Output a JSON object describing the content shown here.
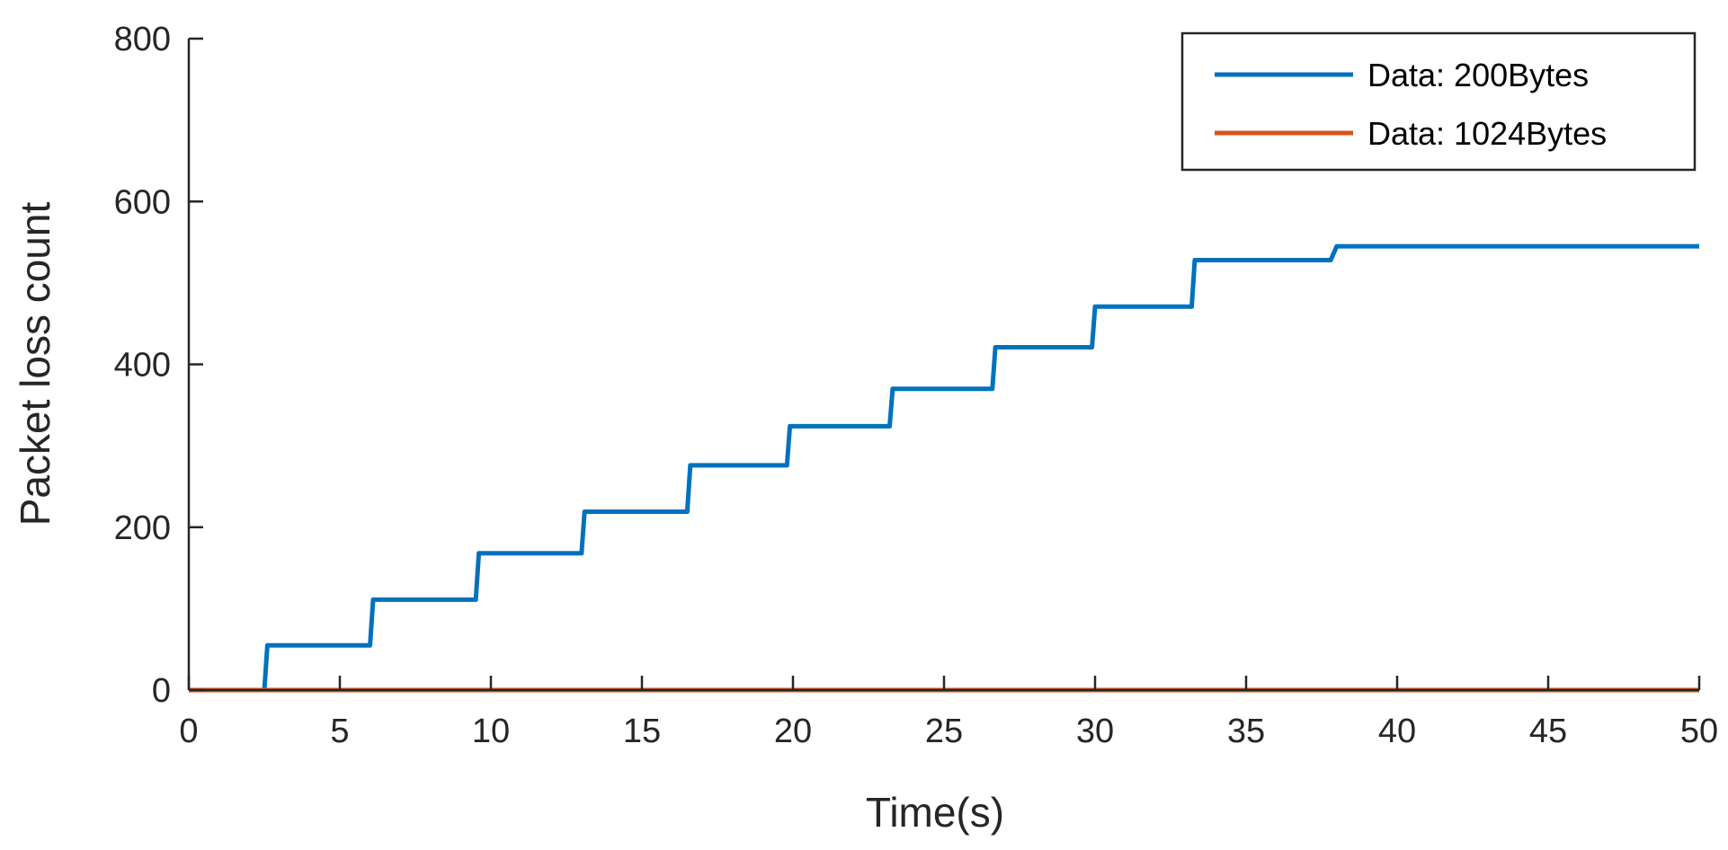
{
  "chart_data": {
    "type": "line",
    "title": "",
    "xlabel": "Time(s)",
    "ylabel": "Packet loss count",
    "xlim": [
      0,
      50
    ],
    "ylim": [
      0,
      800
    ],
    "xticks": [
      0,
      5,
      10,
      15,
      20,
      25,
      30,
      35,
      40,
      45,
      50
    ],
    "yticks": [
      0,
      200,
      400,
      600,
      800
    ],
    "xtick_labels": [
      "0",
      "5",
      "10",
      "15",
      "20",
      "25",
      "30",
      "35",
      "40",
      "45",
      "50"
    ],
    "ytick_labels": [
      "0",
      "200",
      "400",
      "600",
      "800"
    ],
    "grid": false,
    "legend_position": "top-right",
    "series": [
      {
        "name": "Data: 200Bytes",
        "color": "#0072BD",
        "x": [
          0,
          2.5,
          2.6,
          6.0,
          6.1,
          9.5,
          9.6,
          13.0,
          13.1,
          16.5,
          16.6,
          19.8,
          19.9,
          23.2,
          23.3,
          26.6,
          26.7,
          29.9,
          30.0,
          33.2,
          33.3,
          37.8,
          38.0,
          50
        ],
        "y": [
          0,
          0,
          55,
          55,
          111,
          111,
          168,
          168,
          219,
          219,
          276,
          276,
          324,
          324,
          370,
          370,
          421,
          421,
          471,
          471,
          528,
          528,
          545,
          545
        ]
      },
      {
        "name": "Data: 1024Bytes",
        "color": "#D95319",
        "x": [
          0,
          50
        ],
        "y": [
          0,
          0
        ]
      }
    ]
  }
}
